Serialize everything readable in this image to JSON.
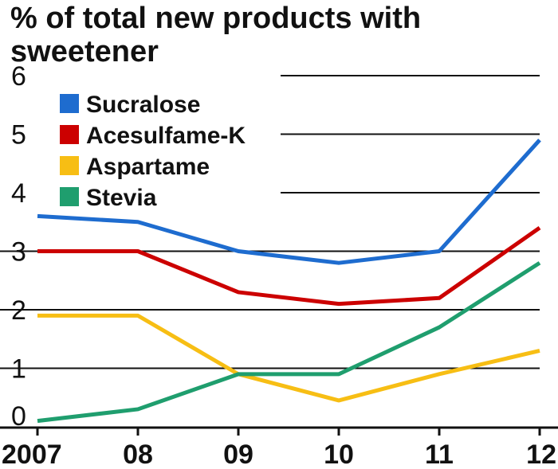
{
  "chart_data": {
    "type": "line",
    "title": "% of total new products with sweetener",
    "x": [
      "2007",
      "08",
      "09",
      "10",
      "11",
      "12"
    ],
    "xlabel": "",
    "ylabel": "",
    "ylim": [
      0,
      6
    ],
    "yticks": [
      "0",
      "1",
      "2",
      "3",
      "4",
      "5",
      "6"
    ],
    "grid": true,
    "legend": "top-left",
    "series": [
      {
        "name": "Sucralose",
        "color": "#1e6ccf",
        "values": [
          3.6,
          3.5,
          3.0,
          2.8,
          3.0,
          4.9
        ]
      },
      {
        "name": "Acesulfame-K",
        "color": "#cc0000",
        "values": [
          3.0,
          3.0,
          2.3,
          2.1,
          2.2,
          3.4
        ]
      },
      {
        "name": "Aspartame",
        "color": "#f7be14",
        "values": [
          1.9,
          1.9,
          0.9,
          0.45,
          0.9,
          1.3
        ]
      },
      {
        "name": "Stevia",
        "color": "#1f9e6e",
        "values": [
          0.1,
          0.3,
          0.9,
          0.9,
          1.7,
          2.8
        ]
      }
    ]
  }
}
